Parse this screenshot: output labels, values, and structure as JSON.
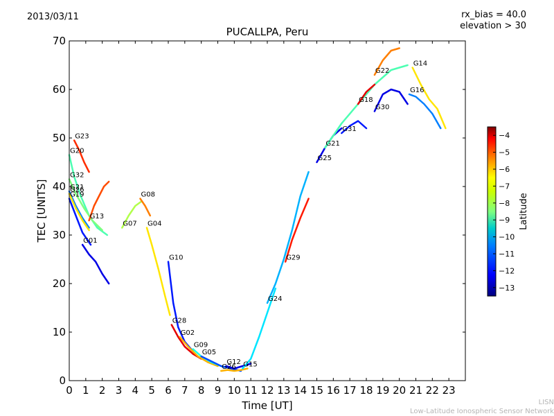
{
  "header": {
    "date": "2013/03/11",
    "notes": [
      "rx_bias = 40.0",
      "elevation > 30"
    ]
  },
  "watermark": {
    "line1": "LISN",
    "line2": "Low-Latitude Ionospheric Sensor Network"
  },
  "colors": {
    "axis": "#000000",
    "background": "#ffffff",
    "colormap": [
      "#00007f",
      "#0000ff",
      "#007fff",
      "#00ffff",
      "#7fff7f",
      "#ffff00",
      "#ff7f00",
      "#ff0000",
      "#7f0000"
    ]
  },
  "chart_data": {
    "type": "line",
    "title": "PUCALLPA, Peru",
    "xlabel": "Time [UT]",
    "ylabel": "TEC [UNITS]",
    "xlim": [
      0,
      24
    ],
    "ylim": [
      0,
      70
    ],
    "xticks": [
      0,
      1,
      2,
      3,
      4,
      5,
      6,
      7,
      8,
      9,
      10,
      11,
      12,
      13,
      14,
      15,
      16,
      17,
      18,
      19,
      20,
      21,
      22,
      23
    ],
    "yticks": [
      0,
      10,
      20,
      30,
      40,
      50,
      60,
      70
    ],
    "grid": false,
    "colorbar": {
      "label": "Latitude",
      "range": [
        -13.5,
        -3.5
      ],
      "ticks": [
        -4,
        -5,
        -6,
        -7,
        -8,
        -9,
        -10,
        -11,
        -12,
        -13
      ]
    },
    "series": [
      {
        "name": "G23",
        "lat": -5.2,
        "x": [
          0.3,
          0.6,
          0.9,
          1.2
        ],
        "y": [
          49.5,
          47.5,
          45.0,
          43.0
        ]
      },
      {
        "name": "G20",
        "lat": -9.0,
        "x": [
          0.0,
          0.3,
          0.7,
          1.2,
          1.7,
          2.3
        ],
        "y": [
          46.5,
          42.0,
          38.0,
          34.0,
          31.5,
          30.0
        ]
      },
      {
        "name": "G32",
        "lat": -8.5,
        "x": [
          0.0,
          0.4,
          0.9,
          1.4,
          2.0
        ],
        "y": [
          41.5,
          38.5,
          35.5,
          33.0,
          31.0
        ]
      },
      {
        "name": "G21",
        "lat": -11.0,
        "x": [
          0.0,
          0.4,
          0.8,
          1.2
        ],
        "y": [
          39.0,
          36.0,
          33.5,
          31.5
        ]
      },
      {
        "name": "G26",
        "lat": -7.0,
        "x": [
          0.0,
          0.4,
          0.8,
          1.2
        ],
        "y": [
          38.5,
          35.5,
          33.0,
          31.0
        ]
      },
      {
        "name": "G19",
        "lat": -12.0,
        "x": [
          0.0,
          0.4,
          0.8,
          1.3
        ],
        "y": [
          37.5,
          34.0,
          30.5,
          28.0
        ]
      },
      {
        "name": "G13",
        "lat": -5.5,
        "x": [
          1.2,
          1.5,
          1.8,
          2.1,
          2.4
        ],
        "y": [
          33.0,
          36.0,
          38.0,
          40.0,
          41.0
        ]
      },
      {
        "name": "G01",
        "lat": -12.5,
        "x": [
          0.8,
          1.2,
          1.6,
          2.0,
          2.4
        ],
        "y": [
          28.0,
          26.0,
          24.5,
          22.0,
          20.0
        ]
      },
      {
        "name": "G07",
        "lat": -8.0,
        "x": [
          3.2,
          3.6,
          4.0,
          4.4
        ],
        "y": [
          31.5,
          34.0,
          36.0,
          37.0
        ]
      },
      {
        "name": "G08",
        "lat": -6.0,
        "x": [
          4.3,
          4.6,
          4.9
        ],
        "y": [
          37.5,
          36.0,
          34.0
        ]
      },
      {
        "name": "G04",
        "lat": -7.0,
        "x": [
          4.7,
          5.0,
          5.4,
          5.8,
          6.1
        ],
        "y": [
          31.5,
          28.0,
          23.0,
          17.5,
          13.5
        ]
      },
      {
        "name": "G10",
        "lat": -12.0,
        "x": [
          6.0,
          6.3,
          6.6,
          7.0,
          7.5
        ],
        "y": [
          24.5,
          16.0,
          11.0,
          8.0,
          6.0
        ]
      },
      {
        "name": "G28",
        "lat": -4.5,
        "x": [
          6.2,
          6.6,
          7.0,
          7.5,
          8.0
        ],
        "y": [
          11.5,
          9.0,
          7.0,
          5.5,
          4.5
        ]
      },
      {
        "name": "G02",
        "lat": -6.5,
        "x": [
          6.7,
          7.2,
          7.8,
          8.4,
          9.0
        ],
        "y": [
          9.0,
          7.0,
          5.0,
          3.8,
          3.0
        ]
      },
      {
        "name": "G09",
        "lat": -9.5,
        "x": [
          7.5,
          8.0,
          8.6,
          9.2,
          9.8
        ],
        "y": [
          6.5,
          5.0,
          3.8,
          3.0,
          2.5
        ]
      },
      {
        "name": "G05",
        "lat": -11.5,
        "x": [
          8.0,
          8.6,
          9.2,
          9.8,
          10.4
        ],
        "y": [
          5.0,
          4.0,
          3.0,
          2.5,
          2.0
        ]
      },
      {
        "name": "G26",
        "lat": -6.5,
        "x": [
          9.2,
          9.6,
          10.0,
          10.4,
          10.8
        ],
        "y": [
          2.0,
          2.2,
          2.0,
          2.2,
          2.5
        ]
      },
      {
        "name": "G12",
        "lat": -12.5,
        "x": [
          9.5,
          10.0,
          10.5,
          11.0
        ],
        "y": [
          3.0,
          2.5,
          3.0,
          3.5
        ]
      },
      {
        "name": "G15",
        "lat": -10.0,
        "x": [
          10.5,
          11.0,
          11.5,
          12.0,
          12.5
        ],
        "y": [
          2.5,
          4.5,
          9.0,
          14.0,
          19.0
        ]
      },
      {
        "name": "G24",
        "lat": -10.5,
        "x": [
          12.0,
          12.5,
          13.0,
          13.5,
          14.0,
          14.5
        ],
        "y": [
          16.0,
          20.0,
          25.0,
          31.0,
          38.0,
          43.0
        ]
      },
      {
        "name": "G29",
        "lat": -5.0,
        "x": [
          13.1,
          13.5,
          14.0,
          14.5
        ],
        "y": [
          24.5,
          29.0,
          33.5,
          37.5
        ]
      },
      {
        "name": "G25",
        "lat": -12.5,
        "x": [
          15.0,
          15.5,
          16.0,
          16.5
        ],
        "y": [
          45.0,
          48.0,
          50.5,
          52.0
        ]
      },
      {
        "name": "G21",
        "lat": -9.0,
        "x": [
          15.5,
          16.5,
          17.5,
          18.5,
          19.5,
          20.5
        ],
        "y": [
          48.0,
          53.0,
          57.0,
          61.0,
          64.0,
          65.0
        ]
      },
      {
        "name": "G31",
        "lat": -12.0,
        "x": [
          16.5,
          17.0,
          17.5,
          18.0
        ],
        "y": [
          51.0,
          52.5,
          53.5,
          52.0
        ]
      },
      {
        "name": "G18",
        "lat": -4.5,
        "x": [
          17.5,
          18.0,
          18.5
        ],
        "y": [
          57.0,
          59.5,
          61.0
        ]
      },
      {
        "name": "G30",
        "lat": -12.5,
        "x": [
          18.5,
          19.0,
          19.5,
          20.0,
          20.5
        ],
        "y": [
          55.5,
          59.0,
          60.0,
          59.5,
          57.0
        ]
      },
      {
        "name": "G22",
        "lat": -6.0,
        "x": [
          18.5,
          19.0,
          19.5,
          20.0
        ],
        "y": [
          63.0,
          66.0,
          68.0,
          68.5
        ]
      },
      {
        "name": "G14",
        "lat": -7.0,
        "x": [
          20.8,
          21.3,
          21.8,
          22.3,
          22.8
        ],
        "y": [
          64.5,
          61.0,
          58.0,
          56.0,
          52.0
        ]
      },
      {
        "name": "G16",
        "lat": -11.0,
        "x": [
          20.6,
          21.0,
          21.5,
          22.0,
          22.5
        ],
        "y": [
          59.0,
          58.5,
          57.0,
          55.0,
          52.0
        ]
      }
    ]
  }
}
